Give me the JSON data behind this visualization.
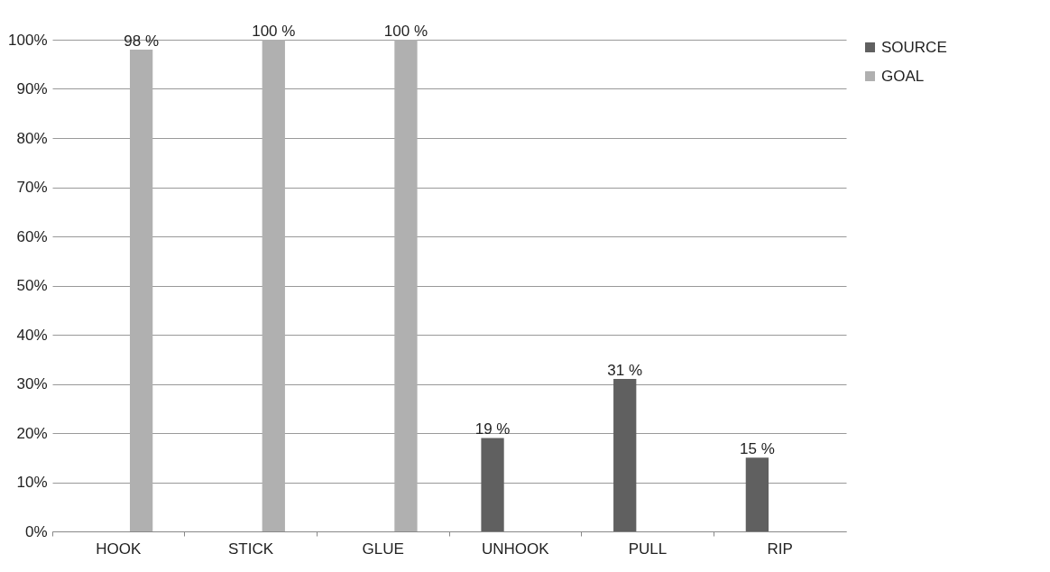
{
  "chart_data": {
    "type": "bar",
    "categories": [
      "HOOK",
      "STICK",
      "GLUE",
      "UNHOOK",
      "PULL",
      "RIP"
    ],
    "series": [
      {
        "name": "SOURCE",
        "color": "#606060",
        "values": [
          null,
          null,
          null,
          19,
          31,
          15
        ],
        "value_labels": [
          null,
          null,
          null,
          "19 %",
          "31 %",
          "15 %"
        ]
      },
      {
        "name": "GOAL",
        "color": "#b0b0b0",
        "values": [
          98,
          100,
          100,
          null,
          null,
          null
        ],
        "value_labels": [
          "98 %",
          "100 %",
          "100 %",
          null,
          null,
          null
        ]
      }
    ],
    "ylim": [
      0,
      100
    ],
    "yticks": [
      {
        "value": 0,
        "label": "0%"
      },
      {
        "value": 10,
        "label": "10%"
      },
      {
        "value": 20,
        "label": "20%"
      },
      {
        "value": 30,
        "label": "30%"
      },
      {
        "value": 40,
        "label": "40%"
      },
      {
        "value": 50,
        "label": "50%"
      },
      {
        "value": 60,
        "label": "60%"
      },
      {
        "value": 70,
        "label": "70%"
      },
      {
        "value": 80,
        "label": "80%"
      },
      {
        "value": 90,
        "label": "90%"
      },
      {
        "value": 100,
        "label": "100%"
      }
    ],
    "grid": "y",
    "legend": "right"
  }
}
